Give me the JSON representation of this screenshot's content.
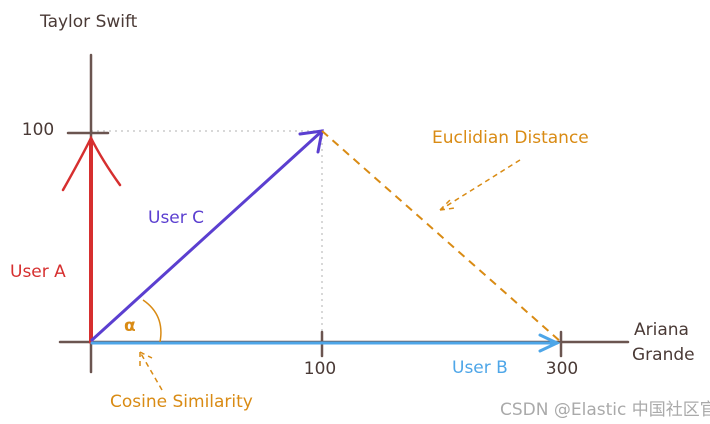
{
  "axes": {
    "y_label": "Taylor Swift",
    "x_label": [
      "Ariana",
      "Grande"
    ],
    "y_ticks": [
      "100"
    ],
    "x_ticks": [
      "100",
      "300"
    ]
  },
  "vectors": [
    {
      "label": "User A"
    },
    {
      "label": "User C"
    },
    {
      "label": "User B"
    }
  ],
  "annotations": {
    "distance": "Euclidian Distance",
    "similarity": "Cosine Similarity",
    "angle": "α"
  },
  "watermark": "CSDN @Elastic 中国社区官方博客"
}
